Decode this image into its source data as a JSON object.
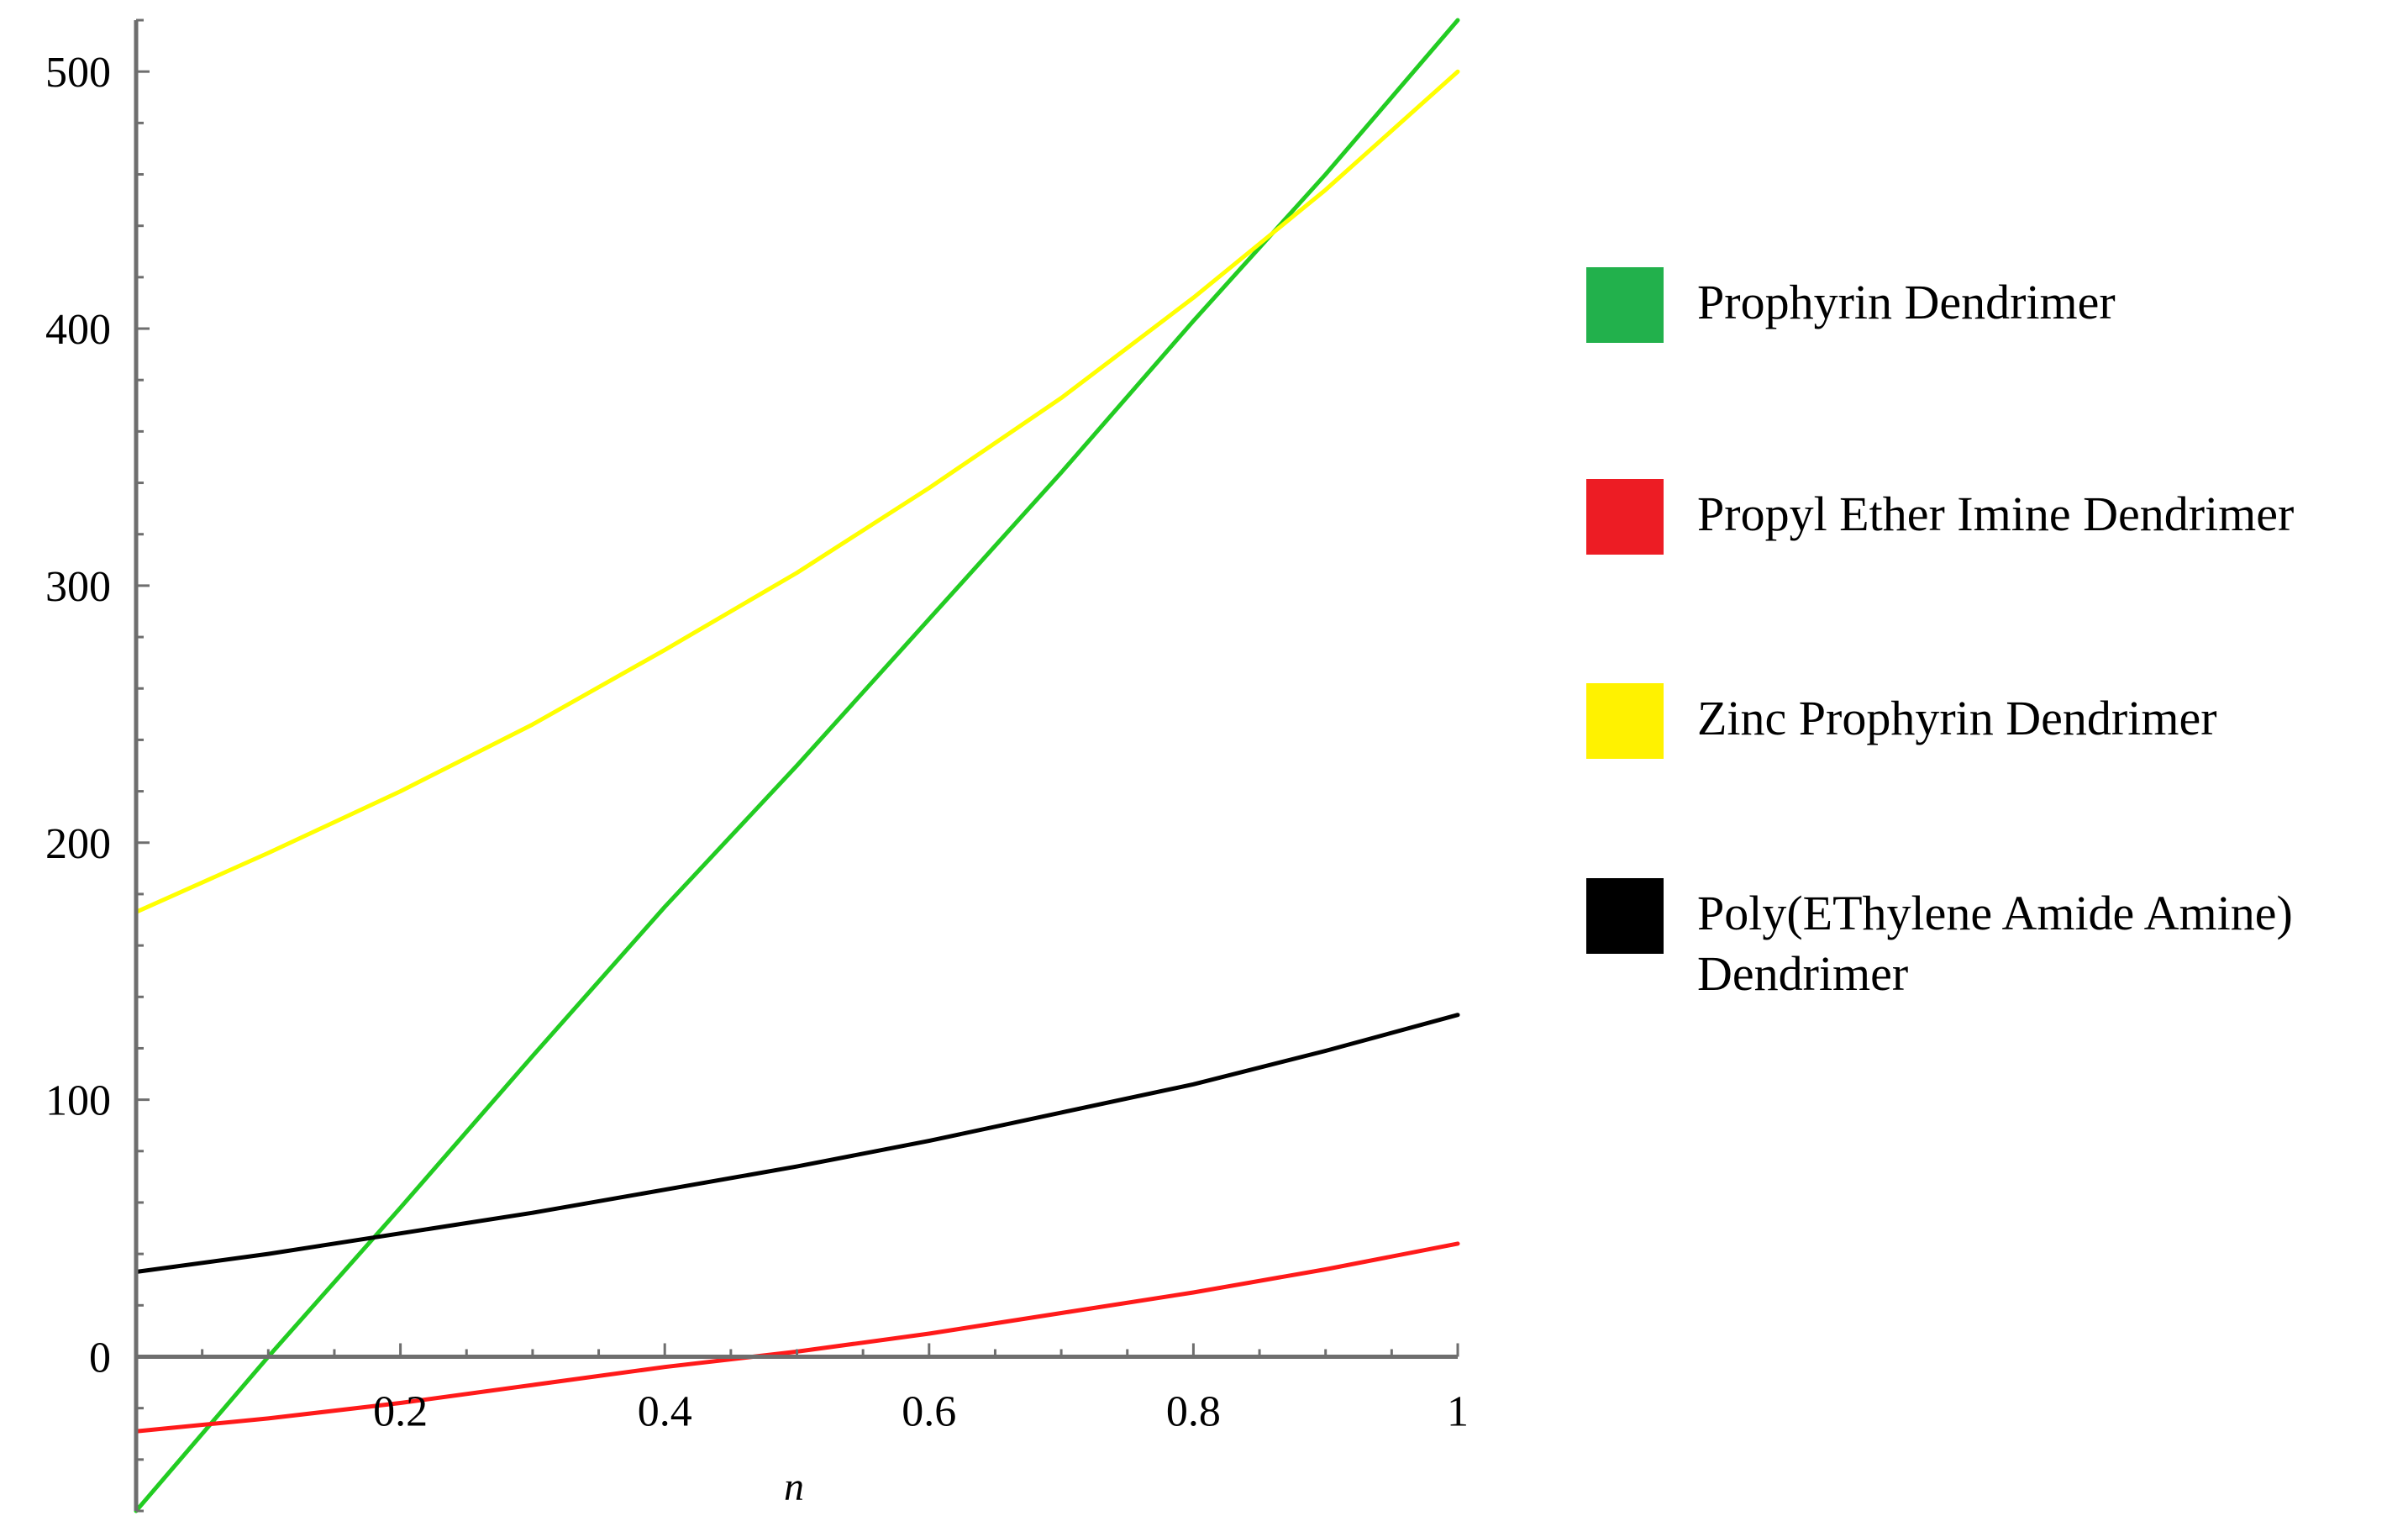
{
  "chart_data": {
    "type": "line",
    "xlabel": "n",
    "ylabel": "",
    "xlim": [
      0,
      1
    ],
    "ylim": [
      -60,
      520
    ],
    "x_ticks": [
      "0.2",
      "0.4",
      "0.6",
      "0.8",
      "1"
    ],
    "y_ticks": [
      "0",
      "100",
      "200",
      "300",
      "400",
      "500"
    ],
    "grid": false,
    "legend_position": "right",
    "series": [
      {
        "name": "Prophyrin Dendrimer",
        "color": "#22cc22",
        "x": [
          0,
          0.1,
          0.2,
          0.3,
          0.4,
          0.5,
          0.6,
          0.7,
          0.8,
          0.9,
          1
        ],
        "y": [
          -60,
          0,
          58,
          117,
          175,
          230,
          287,
          344,
          403,
          460,
          520
        ]
      },
      {
        "name": "Propyl Ether Imine Dendrimer",
        "color": "#ff1a1a",
        "x": [
          0,
          0.1,
          0.2,
          0.3,
          0.4,
          0.5,
          0.6,
          0.7,
          0.8,
          0.9,
          1
        ],
        "y": [
          -29,
          -24,
          -18,
          -11,
          -4,
          2,
          9,
          17,
          25,
          34,
          44
        ]
      },
      {
        "name": "Zinc Prophyrin Dendrimer",
        "color": "#ffff00",
        "x": [
          0,
          0.1,
          0.2,
          0.3,
          0.4,
          0.5,
          0.6,
          0.7,
          0.8,
          0.9,
          1
        ],
        "y": [
          173,
          196,
          220,
          246,
          275,
          305,
          338,
          373,
          412,
          454,
          500
        ]
      },
      {
        "name": "Poly(EThylene Amide Amine) Dendrimer",
        "color": "#000000",
        "x": [
          0,
          0.1,
          0.2,
          0.3,
          0.4,
          0.5,
          0.6,
          0.7,
          0.8,
          0.9,
          1
        ],
        "y": [
          33,
          40,
          48,
          56,
          65,
          74,
          84,
          95,
          106,
          119,
          133
        ]
      }
    ]
  },
  "legend": {
    "items": [
      {
        "label": "Prophyrin Dendrimer",
        "color": "#22b14c"
      },
      {
        "label": "Propyl Ether Imine Dendrimer",
        "color": "#ed1c24"
      },
      {
        "label": "Zinc Prophyrin Dendrimer",
        "color": "#fff200"
      },
      {
        "label": "Poly(EThylene Amide Amine) Dendrimer",
        "color": "#000000"
      }
    ]
  }
}
